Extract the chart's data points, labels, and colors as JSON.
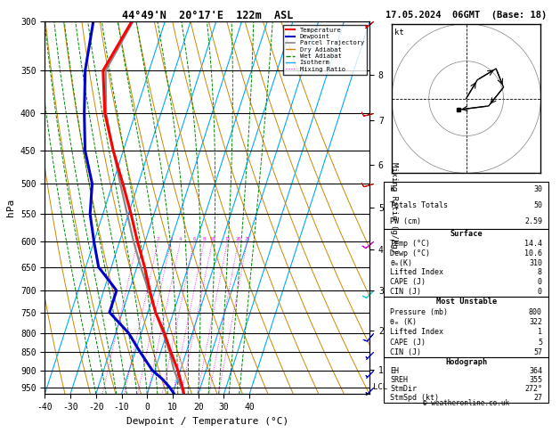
{
  "title_left": "44°49'N  20°17'E  122m  ASL",
  "title_right": "17.05.2024  06GMT  (Base: 18)",
  "xlabel": "Dewpoint / Temperature (°C)",
  "ylabel_left": "hPa",
  "ylabel_right": "Mixing Ratio (g/kg)",
  "pressure_levels": [
    300,
    350,
    400,
    450,
    500,
    550,
    600,
    650,
    700,
    750,
    800,
    850,
    900,
    950
  ],
  "xlim": [
    -40,
    40
  ],
  "p_min": 300,
  "p_max": 970,
  "temp_color": "#ff0000",
  "dewp_color": "#0000cc",
  "parcel_color": "#888888",
  "dry_adiabat_color": "#cc8800",
  "wet_adiabat_color": "#008800",
  "isotherm_color": "#00aaff",
  "mixing_ratio_color": "#ff00ff",
  "skew_factor": 40.0,
  "stats_k": 30,
  "stats_tt": 50,
  "stats_pw": "2.59",
  "sfc_temp": "14.4",
  "sfc_dewp": "10.6",
  "sfc_thetae": 310,
  "sfc_li": 8,
  "sfc_cape": 0,
  "sfc_cin": 0,
  "mu_pres": 800,
  "mu_thetae": 322,
  "mu_li": 1,
  "mu_cape": 5,
  "mu_cin": 57,
  "hodo_eh": 364,
  "hodo_sreh": 355,
  "hodo_stmdir": "272°",
  "hodo_stmspd": 27,
  "temp_profile_p": [
    970,
    950,
    925,
    900,
    850,
    800,
    750,
    700,
    650,
    600,
    550,
    500,
    450,
    400,
    350,
    300
  ],
  "temp_profile_t": [
    14.4,
    13.0,
    11.0,
    9.0,
    4.0,
    -1.0,
    -7.0,
    -12.0,
    -17.0,
    -23.0,
    -29.0,
    -36.0,
    -44.0,
    -52.0,
    -58.0,
    -53.0
  ],
  "dewp_profile_p": [
    970,
    950,
    925,
    900,
    850,
    800,
    750,
    700,
    650,
    600,
    550,
    500,
    450,
    400,
    350,
    300
  ],
  "dewp_profile_t": [
    10.6,
    8.0,
    4.0,
    -1.0,
    -8.0,
    -15.0,
    -25.0,
    -25.0,
    -35.0,
    -40.0,
    -45.0,
    -48.0,
    -55.0,
    -60.0,
    -65.0,
    -68.0
  ],
  "parcel_profile_p": [
    970,
    950,
    925,
    900,
    850,
    800,
    750,
    700,
    650,
    600,
    550,
    500,
    450,
    400,
    350,
    300
  ],
  "parcel_profile_t": [
    14.4,
    12.5,
    10.0,
    7.5,
    3.5,
    -1.5,
    -7.0,
    -12.5,
    -18.5,
    -24.5,
    -30.5,
    -37.0,
    -44.0,
    -51.5,
    -57.0,
    -52.5
  ],
  "mixing_ratio_values": [
    1,
    2,
    3,
    4,
    6,
    8,
    10,
    15,
    20,
    25
  ],
  "lcl_pressure": 950,
  "wind_barbs_p": [
    950,
    900,
    850,
    800,
    700,
    600,
    500,
    400,
    300
  ],
  "wind_barbs_u": [
    2,
    3,
    4,
    5,
    8,
    6,
    10,
    8,
    5
  ],
  "wind_barbs_v": [
    2,
    3,
    4,
    6,
    8,
    5,
    3,
    2,
    4
  ],
  "wind_barbs_colors": [
    "#0000cc",
    "#0000cc",
    "#0000cc",
    "#0000cc",
    "#00cccc",
    "#cc00cc",
    "#cc0000",
    "#cc0000",
    "#cc0000"
  ],
  "hodograph_u": [
    0,
    3,
    8,
    10,
    6,
    -2
  ],
  "hodograph_v": [
    0,
    5,
    8,
    3,
    -2,
    -3
  ],
  "copyright": "© weatheronline.co.uk",
  "km_ticks": [
    1,
    2,
    3,
    4,
    5,
    6,
    7,
    8
  ]
}
